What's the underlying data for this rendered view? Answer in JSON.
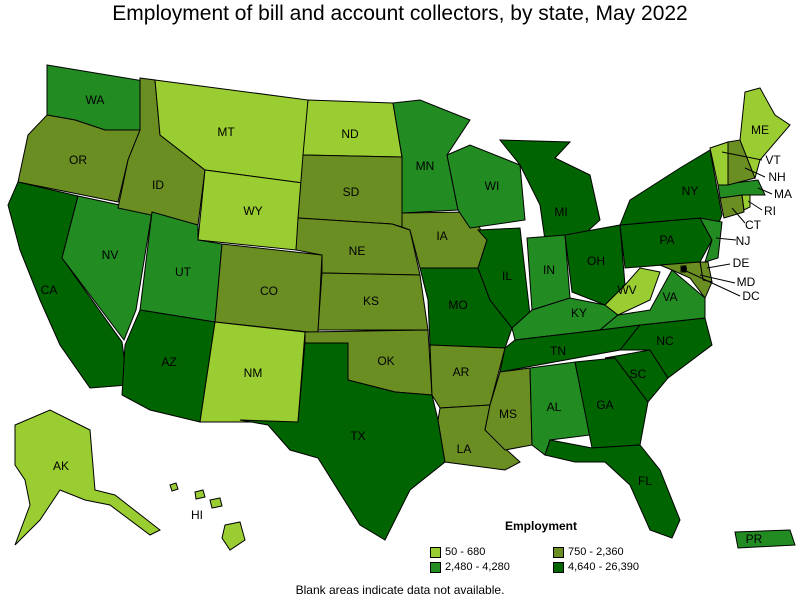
{
  "title": "Employment of bill and account collectors, by state, May 2022",
  "legend": {
    "title": "Employment",
    "bins": [
      {
        "label": "50 - 680",
        "color": "#9acd32"
      },
      {
        "label": "750 - 2,360",
        "color": "#6b8e23"
      },
      {
        "label": "2,480 - 4,280",
        "color": "#228b22"
      },
      {
        "label": "4,640 - 26,390",
        "color": "#006400"
      }
    ]
  },
  "note": "Blank areas indicate data not available.",
  "states": {
    "WA": 2,
    "OR": 1,
    "CA": 3,
    "NV": 2,
    "ID": 1,
    "MT": 0,
    "WY": 0,
    "UT": 2,
    "AZ": 3,
    "CO": 1,
    "NM": 0,
    "ND": 0,
    "SD": 1,
    "NE": 1,
    "KS": 1,
    "OK": 1,
    "TX": 3,
    "MN": 2,
    "IA": 1,
    "MO": 3,
    "AR": 1,
    "LA": 1,
    "WI": 2,
    "IL": 3,
    "MI": 3,
    "IN": 2,
    "OH": 3,
    "KY": 2,
    "TN": 3,
    "MS": 1,
    "AL": 2,
    "GA": 3,
    "FL": 3,
    "SC": 3,
    "NC": 3,
    "VA": 2,
    "WV": 0,
    "PA": 3,
    "NY": 3,
    "ME": 0,
    "VT": 0,
    "NH": 1,
    "MA": 2,
    "RI": 0,
    "CT": 1,
    "NJ": 2,
    "DE": 1,
    "MD": 1,
    "DC": 0,
    "AK": 0,
    "HI": 0,
    "PR": 2
  }
}
